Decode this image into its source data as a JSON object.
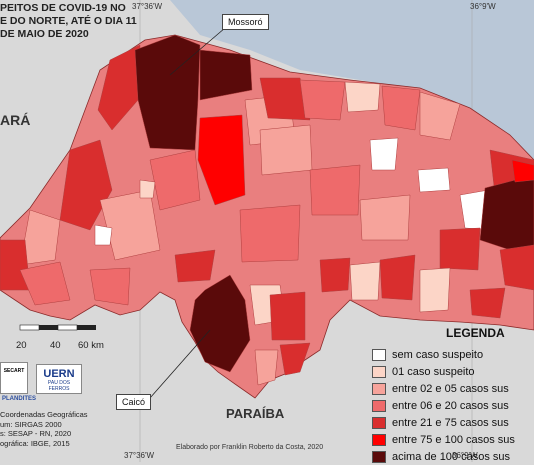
{
  "title_lines": [
    "PEITOS DE COVID-19 NO",
    "E DO NORTE, ATÉ O DIA 11",
    "DE MAIO DE 2020"
  ],
  "neighbors": {
    "left": "ARÁ",
    "bottom": "PARAÍBA"
  },
  "callouts": {
    "top": "Mossoró",
    "bottom": "Caicó"
  },
  "coordinates": {
    "top_right": "36°9'W",
    "top_left": "37°36'W",
    "bottom_left": "37°36'W",
    "bottom_right": "36°9'W"
  },
  "scale_bar": {
    "labels": [
      "20",
      "40",
      "60 km"
    ]
  },
  "logos": {
    "uern": "UERN",
    "uern_sub": "PAU DOS FERROS",
    "left_top": "SECART",
    "plandites": "PLANDITES"
  },
  "credits": [
    "Coordenadas Geográficas",
    "um: SIRGAS 2000",
    "s: SESAP - RN, 2020",
    "ográfica: IBGE, 2015"
  ],
  "author": "Elaborado por Franklin Roberto da Costa, 2020",
  "legend": {
    "title": "LEGENDA",
    "items": [
      {
        "label": "sem caso suspeito",
        "color": "#ffffff"
      },
      {
        "label": "01 caso suspeito",
        "color": "#fcd5c7"
      },
      {
        "label": "entre 02 e 05 casos sus",
        "color": "#f6a39b"
      },
      {
        "label": "entre 06 e 20 casos sus",
        "color": "#ee6a6b"
      },
      {
        "label": "entre 21 e 75 casos sus",
        "color": "#d92e2e"
      },
      {
        "label": "entre 75 e 100 casos sus",
        "color": "#ff0000"
      },
      {
        "label": "acima de 100 casos sus",
        "color": "#5a0a0a"
      }
    ]
  },
  "colors": {
    "background": "#d9d9d9",
    "sea": "#b8c7d6",
    "state_base": "#e97f7f",
    "border": "#8a2a2a"
  }
}
